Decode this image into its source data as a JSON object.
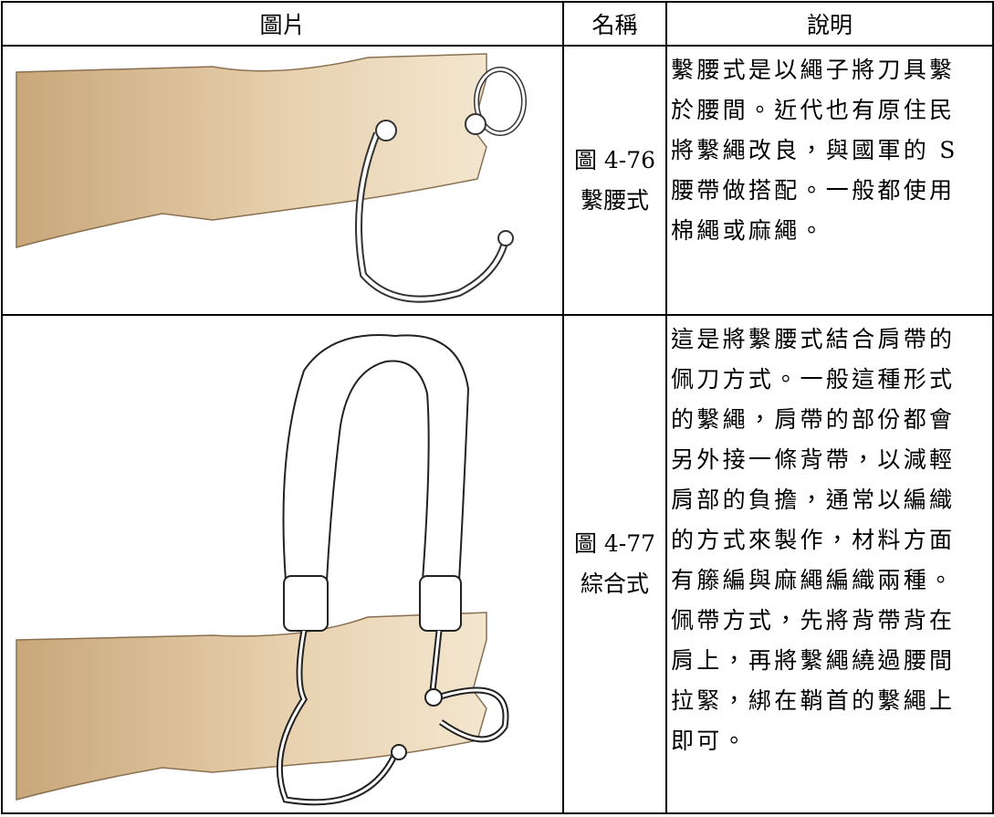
{
  "table": {
    "header": [
      "圖片",
      "名稱",
      "說明"
    ],
    "rows": [
      {
        "name": [
          "圖 4-76",
          "繫腰式"
        ],
        "description": [
          "繫腰式是以繩子將刀具繫",
          "於腰間。近代也有原住民",
          "將繫繩改良，與國軍的 S",
          "腰帶做搭配。一般都使用",
          "棉繩或麻繩。"
        ]
      },
      {
        "name": [
          "圖 4-77",
          "綜合式"
        ],
        "description": [
          "這是將繫腰式結合肩帶的",
          "佩刀方式。一般這種形式",
          "的繫繩，肩帶的部份都會",
          "另外接一條背帶，以減輕",
          "肩部的負擔，通常以編織",
          "的方式來製作，材料方面",
          "有籐編與麻繩編織兩種。",
          "佩帶方式，先將背帶背在",
          "肩上，再將繫繩繞過腰間",
          "拉緊，綁在鞘首的繫繩上",
          "即可。"
        ]
      }
    ]
  }
}
